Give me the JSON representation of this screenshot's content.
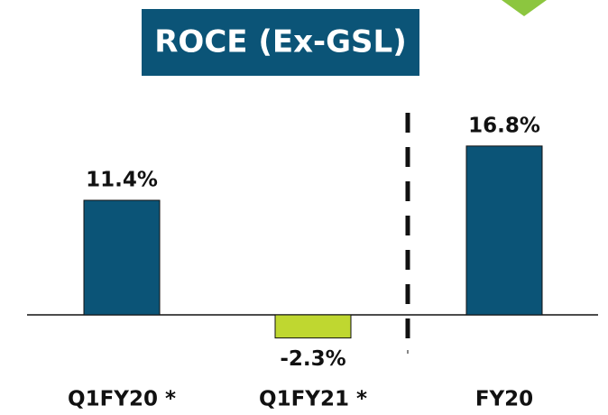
{
  "chart_data": {
    "type": "bar",
    "title": "ROCE (Ex-GSL)",
    "categories": [
      "Q1FY20 *",
      "Q1FY21 *",
      "FY20"
    ],
    "values": [
      11.4,
      -2.3,
      16.8
    ],
    "value_labels": [
      "11.4%",
      "-2.3%",
      "16.8%"
    ],
    "colors": [
      "#0b5477",
      "#bfd730",
      "#0b5477"
    ],
    "title_color": "#0b5477"
  }
}
